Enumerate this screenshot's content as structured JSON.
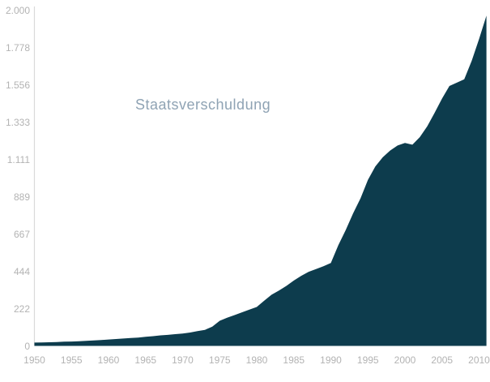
{
  "chart_data": {
    "type": "area",
    "title": "Staatsverschuldung",
    "x": [
      1950,
      1951,
      1952,
      1953,
      1954,
      1955,
      1956,
      1957,
      1958,
      1959,
      1960,
      1961,
      1962,
      1963,
      1964,
      1965,
      1966,
      1967,
      1968,
      1969,
      1970,
      1971,
      1972,
      1973,
      1974,
      1975,
      1976,
      1977,
      1978,
      1979,
      1980,
      1981,
      1982,
      1983,
      1984,
      1985,
      1986,
      1987,
      1988,
      1989,
      1990,
      1991,
      1992,
      1993,
      1994,
      1995,
      1996,
      1997,
      1998,
      1999,
      2000,
      2001,
      2002,
      2003,
      2004,
      2005,
      2006,
      2007,
      2008,
      2009,
      2010,
      2011
    ],
    "values": [
      20,
      21,
      22,
      23,
      25,
      26,
      28,
      30,
      33,
      35,
      38,
      41,
      44,
      47,
      50,
      54,
      58,
      63,
      66,
      70,
      74,
      80,
      88,
      96,
      115,
      150,
      168,
      184,
      200,
      216,
      232,
      270,
      305,
      330,
      358,
      390,
      418,
      442,
      458,
      475,
      495,
      600,
      690,
      790,
      880,
      990,
      1070,
      1125,
      1165,
      1195,
      1210,
      1200,
      1245,
      1310,
      1390,
      1475,
      1550,
      1570,
      1590,
      1700,
      1830,
      1970
    ],
    "xlim": [
      1950,
      2011
    ],
    "ylim": [
      0,
      2000
    ],
    "x_ticks": [
      1950,
      1955,
      1960,
      1965,
      1970,
      1975,
      1980,
      1985,
      1990,
      1995,
      2000,
      2005,
      2010
    ],
    "x_tick_labels": [
      "1950",
      "1955",
      "1960",
      "1965",
      "1970",
      "1975",
      "1980",
      "1985",
      "1990",
      "1995",
      "2000",
      "2005",
      "2010"
    ],
    "y_ticks": [
      0,
      222,
      444,
      667,
      889,
      1111,
      1333,
      1556,
      1778,
      2000
    ],
    "y_tick_labels": [
      "0",
      "222",
      "444",
      "667",
      "889",
      "1.111",
      "1.333",
      "1.556",
      "1.778",
      "2.000"
    ],
    "grid": false,
    "legend": "none",
    "colors": {
      "area_fill": "#0d3c4d",
      "axis_line": "#d9d9d9",
      "tick_label": "#b3b3b3",
      "title": "#8fa3b4",
      "background": "#ffffff"
    }
  }
}
